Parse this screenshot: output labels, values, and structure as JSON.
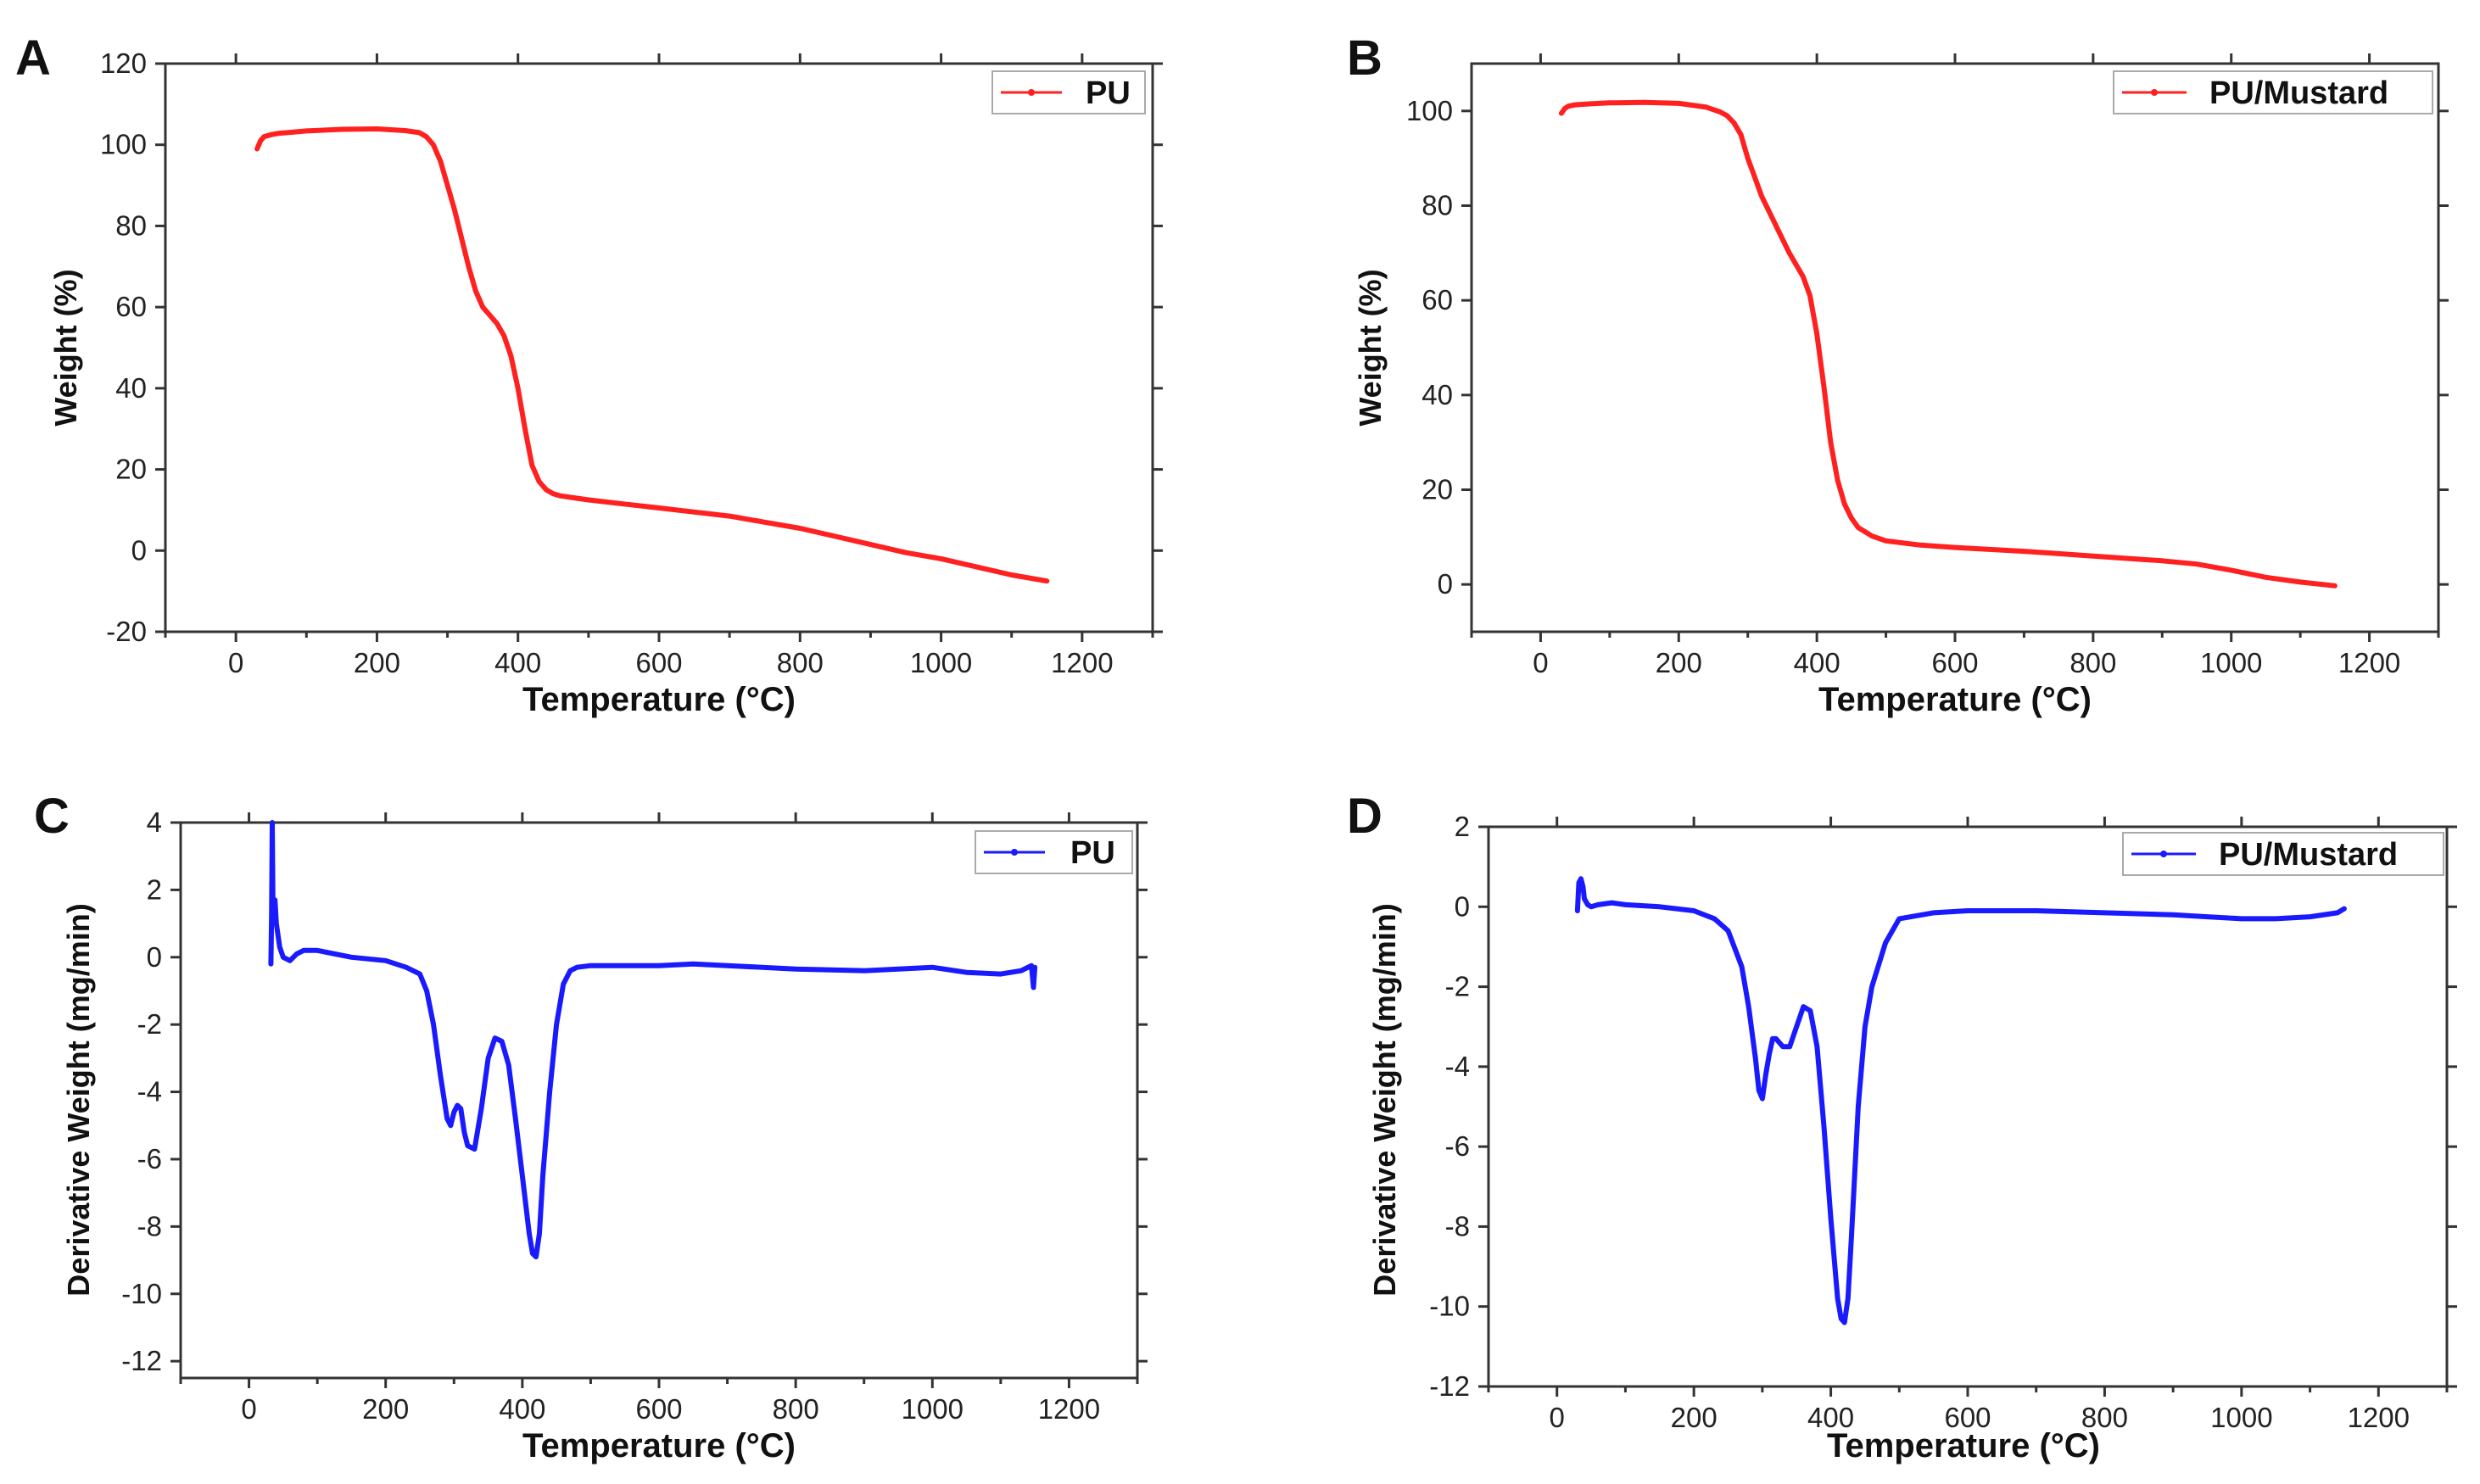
{
  "chart_data": [
    {
      "panel": "A",
      "type": "line",
      "title": "",
      "xlabel": "Temperature (°C)",
      "ylabel": "Weight (%)",
      "xlim": [
        -100,
        1300
      ],
      "ylim": [
        -20,
        120
      ],
      "xticks": [
        0,
        200,
        400,
        600,
        800,
        1000,
        1200
      ],
      "yticks": [
        -20,
        0,
        20,
        40,
        60,
        80,
        100,
        120
      ],
      "legend": "top-right",
      "series": [
        {
          "name": "PU",
          "color": "#ff2020",
          "x": [
            30,
            35,
            40,
            50,
            60,
            80,
            100,
            150,
            200,
            240,
            260,
            270,
            280,
            290,
            300,
            310,
            320,
            330,
            340,
            350,
            360,
            370,
            380,
            390,
            400,
            410,
            420,
            430,
            440,
            450,
            460,
            480,
            500,
            550,
            600,
            650,
            700,
            750,
            800,
            850,
            900,
            950,
            1000,
            1050,
            1100,
            1150
          ],
          "y": [
            99,
            101,
            102,
            102.5,
            102.8,
            103.1,
            103.4,
            103.8,
            103.9,
            103.5,
            103,
            102,
            100,
            96,
            90,
            84,
            77,
            70,
            64,
            60,
            58,
            56,
            53,
            48,
            40,
            30,
            21,
            17,
            15,
            14,
            13.5,
            13,
            12.5,
            11.5,
            10.5,
            9.5,
            8.5,
            7,
            5.5,
            3.5,
            1.5,
            -0.5,
            -2,
            -4,
            -6,
            -7.5
          ]
        }
      ]
    },
    {
      "panel": "B",
      "type": "line",
      "title": "",
      "xlabel": "Temperature (°C)",
      "ylabel": "Weight (%)",
      "xlim": [
        -100,
        1300
      ],
      "ylim": [
        -10,
        110
      ],
      "xticks": [
        0,
        200,
        400,
        600,
        800,
        1000,
        1200
      ],
      "yticks": [
        0,
        20,
        40,
        60,
        80,
        100
      ],
      "legend": "top-right",
      "series": [
        {
          "name": "PU/Mustard",
          "color": "#ff2020",
          "x": [
            30,
            35,
            40,
            50,
            70,
            100,
            150,
            200,
            240,
            260,
            270,
            280,
            290,
            300,
            310,
            320,
            340,
            360,
            380,
            390,
            400,
            410,
            420,
            430,
            440,
            450,
            460,
            480,
            500,
            550,
            600,
            700,
            800,
            900,
            950,
            1000,
            1050,
            1100,
            1150
          ],
          "y": [
            99.5,
            100.5,
            101,
            101.3,
            101.5,
            101.7,
            101.8,
            101.6,
            100.8,
            99.8,
            99,
            97.5,
            95,
            90,
            86,
            82,
            76,
            70,
            65,
            61,
            53,
            42,
            30,
            22,
            17,
            14,
            12,
            10.2,
            9.2,
            8.3,
            7.8,
            7,
            6,
            5,
            4.3,
            3,
            1.5,
            0.5,
            -0.3
          ]
        }
      ]
    },
    {
      "panel": "C",
      "type": "line",
      "title": "",
      "xlabel": "Temperature (°C)",
      "ylabel": "Derivative Weight (mg/min)",
      "xlim": [
        -100,
        1300
      ],
      "ylim": [
        -12.5,
        4
      ],
      "xticks": [
        0,
        200,
        400,
        600,
        800,
        1000,
        1200
      ],
      "yticks": [
        -12,
        -10,
        -8,
        -6,
        -4,
        -2,
        0,
        2,
        4
      ],
      "legend": "top-right",
      "series": [
        {
          "name": "PU",
          "color": "#1a1aff",
          "x": [
            32,
            33,
            34,
            35,
            38,
            40,
            45,
            50,
            60,
            70,
            80,
            100,
            150,
            200,
            230,
            250,
            260,
            270,
            280,
            290,
            295,
            300,
            305,
            310,
            315,
            320,
            330,
            340,
            350,
            360,
            370,
            380,
            390,
            400,
            410,
            415,
            420,
            425,
            430,
            440,
            450,
            460,
            470,
            480,
            500,
            550,
            600,
            650,
            700,
            800,
            900,
            950,
            1000,
            1050,
            1100,
            1130,
            1145,
            1148,
            1150
          ],
          "y": [
            -0.2,
            1.2,
            4,
            1.6,
            1.7,
            1.0,
            0.3,
            0.0,
            -0.1,
            0.1,
            0.2,
            0.2,
            0.0,
            -0.1,
            -0.3,
            -0.5,
            -1.0,
            -2.0,
            -3.5,
            -4.8,
            -5.0,
            -4.6,
            -4.4,
            -4.5,
            -5.2,
            -5.6,
            -5.7,
            -4.5,
            -3.0,
            -2.4,
            -2.5,
            -3.2,
            -4.8,
            -6.5,
            -8.2,
            -8.8,
            -8.9,
            -8.2,
            -6.5,
            -4.0,
            -2.0,
            -0.8,
            -0.4,
            -0.3,
            -0.25,
            -0.25,
            -0.25,
            -0.2,
            -0.25,
            -0.35,
            -0.4,
            -0.35,
            -0.3,
            -0.45,
            -0.5,
            -0.4,
            -0.25,
            -0.9,
            -0.3
          ]
        }
      ]
    },
    {
      "panel": "D",
      "type": "line",
      "title": "",
      "xlabel": "Temperature (°C)",
      "ylabel": "Derivative Weight (mg/min)",
      "xlim": [
        -100,
        1300
      ],
      "ylim": [
        -12,
        2
      ],
      "xticks": [
        0,
        200,
        400,
        600,
        800,
        1000,
        1200
      ],
      "yticks": [
        -12,
        -10,
        -8,
        -6,
        -4,
        -2,
        0,
        2
      ],
      "legend": "top-right",
      "series": [
        {
          "name": "PU/Mustard",
          "color": "#1a1aff",
          "x": [
            30,
            32,
            35,
            38,
            40,
            45,
            50,
            60,
            80,
            100,
            150,
            200,
            230,
            250,
            270,
            280,
            290,
            295,
            300,
            305,
            310,
            315,
            320,
            330,
            340,
            350,
            360,
            370,
            380,
            390,
            400,
            410,
            415,
            420,
            425,
            430,
            440,
            450,
            460,
            480,
            500,
            550,
            600,
            700,
            800,
            900,
            950,
            1000,
            1050,
            1100,
            1140,
            1150
          ],
          "y": [
            -0.1,
            0.6,
            0.7,
            0.5,
            0.2,
            0.05,
            0.0,
            0.05,
            0.1,
            0.05,
            0.0,
            -0.1,
            -0.3,
            -0.6,
            -1.5,
            -2.5,
            -3.8,
            -4.6,
            -4.8,
            -4.2,
            -3.7,
            -3.3,
            -3.3,
            -3.5,
            -3.5,
            -3.0,
            -2.5,
            -2.6,
            -3.5,
            -5.5,
            -7.8,
            -9.8,
            -10.3,
            -10.4,
            -9.8,
            -8.3,
            -5.0,
            -3.0,
            -2.0,
            -0.9,
            -0.3,
            -0.15,
            -0.1,
            -0.1,
            -0.15,
            -0.2,
            -0.25,
            -0.3,
            -0.3,
            -0.25,
            -0.15,
            -0.05
          ]
        }
      ]
    }
  ]
}
